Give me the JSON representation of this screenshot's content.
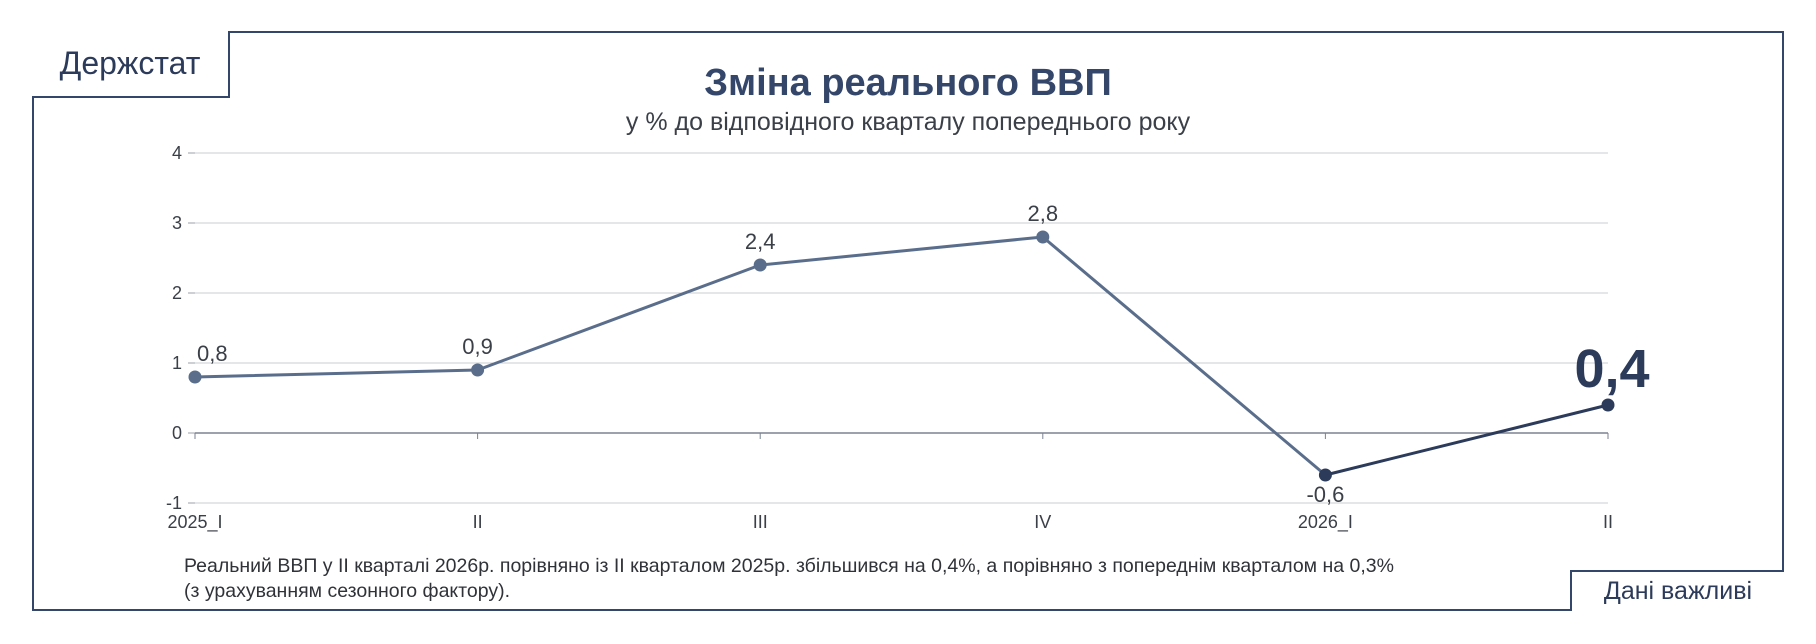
{
  "brand": {
    "name": "Держстат"
  },
  "badge": {
    "label": "Дані важливі"
  },
  "chart_data": {
    "type": "line",
    "title": "Зміна реального ВВП",
    "subtitle": "у % до відповідного кварталу попереднього року",
    "categories": [
      "2025_I",
      "II",
      "III",
      "IV",
      "2026_I",
      "II"
    ],
    "series": [
      {
        "values": [
          0.8,
          0.9,
          2.4,
          2.8,
          -0.6,
          0.4
        ]
      }
    ],
    "data_labels": [
      "0,8",
      "0,9",
      "2,4",
      "2,8",
      "-0,6",
      "0,4"
    ],
    "ylim": [
      -1,
      4
    ],
    "yticks": [
      "-1",
      "0",
      "1",
      "2",
      "3",
      "4"
    ],
    "grid": true,
    "colors": {
      "line": "#5a6e8c",
      "highlight": "#2c3b5a",
      "grid": "#c9ccd2"
    }
  },
  "footnote": {
    "line1": "Реальний ВВП у ІІ кварталі 2026р. порівняно із ІІ кварталом 2025р. збільшився на 0,4%, а порівняно з попереднім кварталом на 0,3%",
    "line2": "(з урахуванням сезонного фактору)."
  }
}
